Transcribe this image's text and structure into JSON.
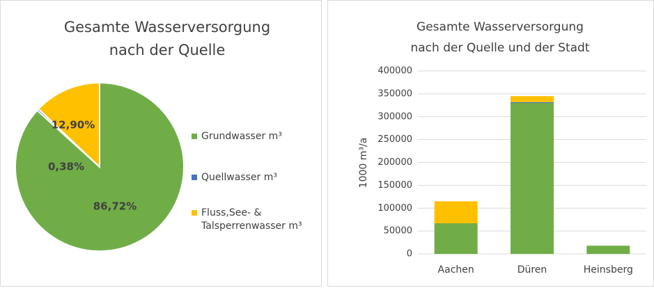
{
  "chart_data": [
    {
      "type": "pie",
      "title": [
        "Gesamte Wasserversorgung",
        "nach der Quelle"
      ],
      "categories": [
        "Grundwasser m³",
        "Quellwasser m³",
        "Fluss,See- & Talsperrenwasser m³"
      ],
      "values": [
        86.72,
        0.38,
        12.9
      ],
      "value_labels": [
        "86,72%",
        "0,38%",
        "12,90%"
      ],
      "colors": [
        "#70ad47",
        "#4472c4",
        "#ffc000"
      ]
    },
    {
      "type": "bar",
      "stacked": true,
      "title": [
        "Gesamte Wasserversorgung",
        "nach der Quelle und der Stadt"
      ],
      "ylabel": "1000 m³/a",
      "categories": [
        "Aachen",
        "Düren",
        "Heinsberg"
      ],
      "series": [
        {
          "color": "#70ad47",
          "values": [
            67000,
            330000,
            18000
          ]
        },
        {
          "color": "#4472c4",
          "values": [
            0,
            1800,
            0
          ]
        },
        {
          "color": "#ffc000",
          "values": [
            48000,
            13200,
            0
          ]
        }
      ],
      "ylim": [
        0,
        400000
      ],
      "yticks": [
        0,
        50000,
        100000,
        150000,
        200000,
        250000,
        300000,
        350000,
        400000
      ],
      "grid": true
    }
  ]
}
